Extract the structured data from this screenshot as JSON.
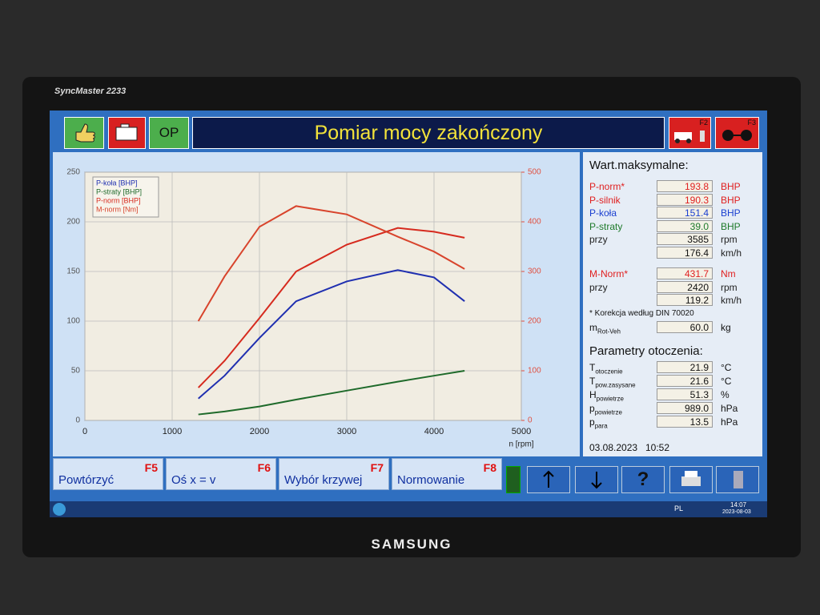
{
  "bezel": {
    "model": "SyncMaster 2233",
    "brand": "SAMSUNG"
  },
  "header": {
    "op": "OP",
    "title": "Pomiar mocy zakończony",
    "f2": "F2",
    "f3": "F3"
  },
  "chart_data": {
    "type": "line",
    "xlabel": "n [rpm]",
    "x": [
      1300,
      1600,
      2000,
      2420,
      3000,
      3585,
      4000,
      4350
    ],
    "series": [
      {
        "name": "P-koła [BHP]",
        "color": "#1f2fb0",
        "values": [
          22,
          45,
          83,
          120,
          140,
          151.4,
          144,
          120
        ]
      },
      {
        "name": "P-straty [BHP]",
        "color": "#1e6a2a",
        "values": [
          6,
          9,
          14,
          21,
          30,
          39,
          45,
          50
        ]
      },
      {
        "name": "P-norm [BHP]",
        "color": "#d62a1e",
        "values": [
          33,
          60,
          103,
          150,
          177,
          193.8,
          190,
          184
        ]
      },
      {
        "name": "M-norm [Nm]",
        "color": "#d8442c",
        "axis": "y2",
        "values": [
          200,
          290,
          390,
          431.7,
          415,
          370,
          340,
          305
        ]
      }
    ],
    "xlim": [
      0,
      5000
    ],
    "xticks": [
      0,
      1000,
      2000,
      3000,
      4000,
      5000
    ],
    "ylim": [
      0,
      250
    ],
    "yticks": [
      0,
      50,
      100,
      150,
      200,
      250
    ],
    "y2lim": [
      0,
      500
    ],
    "y2ticks": [
      0,
      100,
      200,
      300,
      400,
      500
    ],
    "y2color": "#e05040",
    "grid": true,
    "legend": "upper left"
  },
  "panel": {
    "title": "Wart.maksymalne:",
    "rows": [
      {
        "label": "P-norm*",
        "value": "193.8",
        "unit": "BHP",
        "color": "#e02020"
      },
      {
        "label": "P-silnik",
        "value": "190.3",
        "unit": "BHP",
        "color": "#e02020"
      },
      {
        "label": "P-koła",
        "value": "151.4",
        "unit": "BHP",
        "color": "#1a3fd0"
      },
      {
        "label": "P-straty",
        "value": "39.0",
        "unit": "BHP",
        "color": "#1e7a2a"
      },
      {
        "label": "przy",
        "value": "3585",
        "unit": "rpm",
        "color": "#222222"
      },
      {
        "value": "176.4",
        "unit": "km/h",
        "color": "#222222"
      },
      {
        "label": "M-Norm*",
        "value": "431.7",
        "unit": "Nm",
        "color": "#e02020"
      },
      {
        "label": "przy",
        "value": "2420",
        "unit": "rpm",
        "color": "#222222"
      },
      {
        "value": "119.2",
        "unit": "km/h",
        "color": "#222222"
      }
    ],
    "note": "* Korekcja według DIN 70020",
    "mass": {
      "label": "m",
      "sub": "Rot-Veh",
      "value": "60.0",
      "unit": "kg"
    },
    "ambient_title": "Parametry otoczenia:",
    "ambient": [
      {
        "label": "T",
        "sub": "otoczenie",
        "value": "21.9",
        "unit": "°C"
      },
      {
        "label": "T",
        "sub": "pow.zasysane",
        "value": "21.6",
        "unit": "°C"
      },
      {
        "label": "H",
        "sub": "powietrze",
        "value": "51.3",
        "unit": "%"
      },
      {
        "label": "p",
        "sub": "powietrze",
        "value": "989.0",
        "unit": "hPa"
      },
      {
        "label": "p",
        "sub": "para",
        "value": "13.5",
        "unit": "hPa"
      }
    ],
    "date": "03.08.2023",
    "time": "10:52"
  },
  "buttons": [
    {
      "key": "F5",
      "label": "Powtórzyć"
    },
    {
      "key": "F6",
      "label": "Oś x = v"
    },
    {
      "key": "F7",
      "label": "Wybór krzywej"
    },
    {
      "key": "F8",
      "label": "Normowanie"
    }
  ],
  "help": "?",
  "taskbar": {
    "lang": "PL",
    "time": "14:07",
    "date": "2023-08-03"
  }
}
